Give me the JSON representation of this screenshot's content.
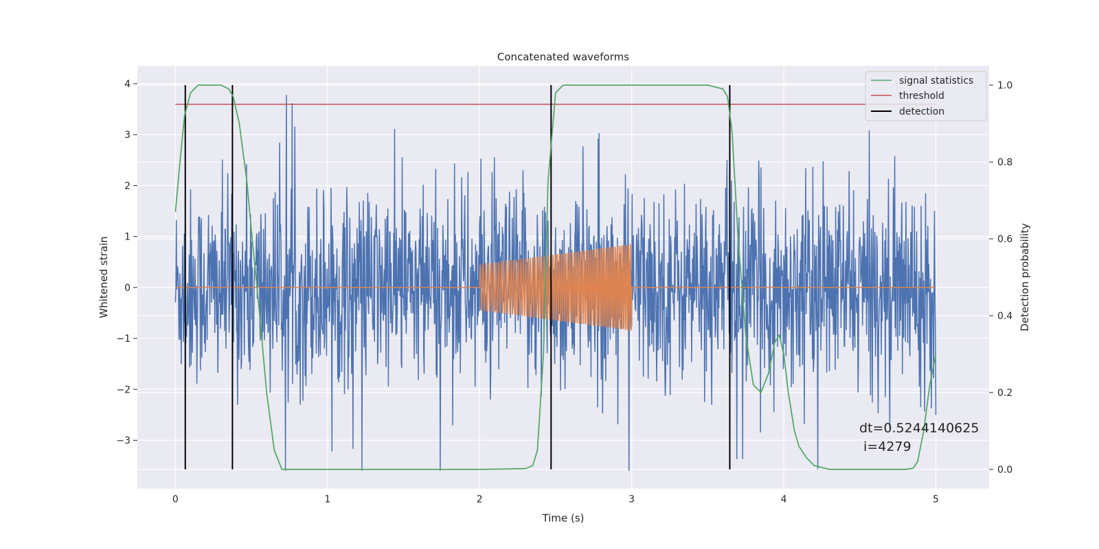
{
  "chart_data": {
    "type": "line",
    "title": "Concatenated waveforms",
    "xlabel": "Time (s)",
    "ylabel": "Whitened strain",
    "y2label": "Detection probability",
    "xlim": [
      -0.25,
      5.35
    ],
    "ylim": [
      -3.95,
      4.35
    ],
    "y2lim": [
      -0.05,
      1.05
    ],
    "xticks": [
      0,
      1,
      2,
      3,
      4,
      5
    ],
    "xtick_labels": [
      "0",
      "1",
      "2",
      "3",
      "4",
      "5"
    ],
    "yticks": [
      -3,
      -2,
      -1,
      0,
      1,
      2,
      3,
      4
    ],
    "ytick_labels": [
      "−3",
      "−2",
      "−1",
      "0",
      "1",
      "2",
      "3",
      "4"
    ],
    "y2ticks": [
      0.0,
      0.2,
      0.4,
      0.6,
      0.8,
      1.0
    ],
    "y2tick_labels": [
      "0.0",
      "0.2",
      "0.4",
      "0.6",
      "0.8",
      "1.0"
    ],
    "grid": true,
    "legend_placement": "top-right",
    "series": [
      {
        "name": "",
        "axis": "left",
        "color": "#4C72B0",
        "description_type": "noise",
        "x_range": [
          0,
          5
        ],
        "envelope": [
          -3.6,
          4.0
        ]
      },
      {
        "name": "",
        "axis": "left",
        "color": "#DD8452",
        "description_type": "chirp",
        "x_range": [
          0,
          5
        ],
        "chirp_x_range": [
          2.0,
          3.0
        ],
        "chirp_amplitude": [
          0.45,
          0.85
        ],
        "chirp_cycles": 70
      },
      {
        "name": "signal statistics",
        "axis": "right",
        "color": "#55A868",
        "x": [
          0.0,
          0.03,
          0.06,
          0.1,
          0.15,
          0.2,
          0.3,
          0.35,
          0.38,
          0.42,
          0.47,
          0.5,
          0.55,
          0.6,
          0.65,
          0.7,
          1.0,
          2.0,
          2.3,
          2.35,
          2.38,
          2.42,
          2.45,
          2.5,
          2.55,
          3.0,
          3.5,
          3.6,
          3.63,
          3.66,
          3.7,
          3.75,
          3.8,
          3.85,
          3.9,
          3.94,
          3.97,
          4.0,
          4.03,
          4.07,
          4.1,
          4.15,
          4.2,
          4.3,
          4.8,
          4.85,
          4.88,
          4.92,
          4.96,
          5.0
        ],
        "y": [
          0.67,
          0.8,
          0.92,
          0.98,
          1.0,
          1.0,
          1.0,
          0.99,
          0.97,
          0.9,
          0.75,
          0.62,
          0.42,
          0.2,
          0.05,
          0.0,
          0.0,
          0.0,
          0.002,
          0.01,
          0.05,
          0.3,
          0.75,
          0.98,
          1.0,
          1.0,
          1.0,
          0.99,
          0.97,
          0.88,
          0.6,
          0.35,
          0.22,
          0.2,
          0.25,
          0.33,
          0.35,
          0.3,
          0.2,
          0.1,
          0.06,
          0.03,
          0.01,
          0.0,
          0.0,
          0.003,
          0.02,
          0.1,
          0.22,
          0.3
        ]
      },
      {
        "name": "threshold",
        "axis": "right",
        "color": "#C44E52",
        "x": [
          0,
          5
        ],
        "y": [
          0.95,
          0.95
        ]
      },
      {
        "name": "detection",
        "axis": "right",
        "color": "#000000",
        "type": "vlines",
        "x": [
          0.065,
          0.375,
          2.47,
          3.645
        ],
        "y_range": [
          0,
          1
        ]
      }
    ],
    "annotation": {
      "line1": "dt=0.5244140625",
      "line2": " i=4279",
      "x": 4.5,
      "y2": 0.1
    }
  }
}
